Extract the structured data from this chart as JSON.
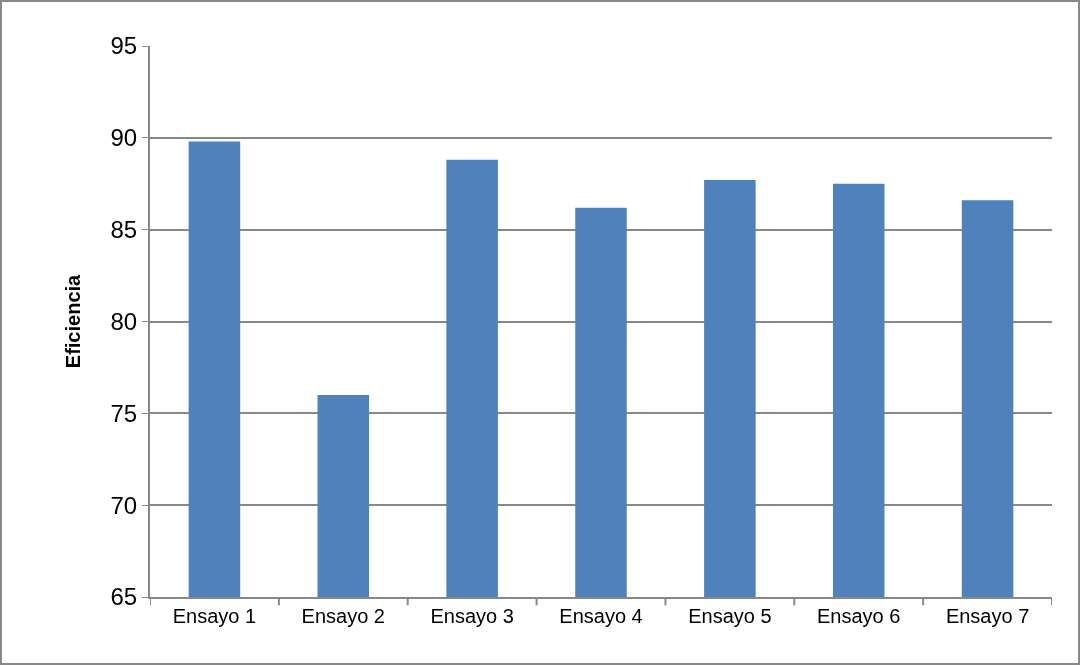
{
  "chart_data": {
    "type": "bar",
    "ylabel": "Eficiencia",
    "categories": [
      "Ensayo 1",
      "Ensayo 2",
      "Ensayo 3",
      "Ensayo 4",
      "Ensayo 5",
      "Ensayo 6",
      "Ensayo 7"
    ],
    "values": [
      89.8,
      76.0,
      88.8,
      86.2,
      87.7,
      87.5,
      86.6
    ],
    "color": "#4f81bd",
    "ylim": [
      65,
      95
    ],
    "yticks": [
      65,
      70,
      75,
      80,
      85,
      90,
      95
    ],
    "grid": "y",
    "legend": false
  }
}
